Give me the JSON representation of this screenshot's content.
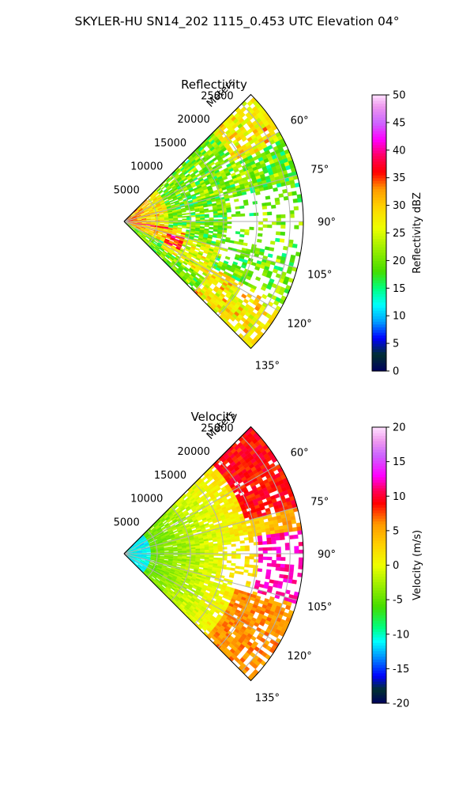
{
  "figure": {
    "suptitle": "SKYLER-HU  SN14_202  1115_0.453 UTC Elevation 04°"
  },
  "chart_data": [
    {
      "type": "heatmap",
      "projection": "polar-sector",
      "title": "Reflectivity",
      "radial_label": "Meters",
      "theta_range_deg": [
        45,
        135
      ],
      "theta_zero": "north",
      "theta_direction": "clockwise",
      "r_range": [
        0,
        27000
      ],
      "r_ticks": [
        5000,
        10000,
        15000,
        20000,
        25000
      ],
      "r_tick_labels": [
        "5000",
        "10000",
        "15000",
        "20000",
        "25000"
      ],
      "theta_ticks_deg": [
        60,
        75,
        90,
        105,
        120,
        135
      ],
      "theta_tick_labels": [
        "60°",
        "75°",
        "90°",
        "105°",
        "120°",
        "135°"
      ],
      "grid": true,
      "colorbar": {
        "label": "Reflectivity dBZ",
        "min": 0,
        "max": 50,
        "ticks": [
          0,
          5,
          10,
          15,
          20,
          25,
          30,
          35,
          40,
          45,
          50
        ],
        "tick_labels": [
          "0",
          "5",
          "10",
          "15",
          "20",
          "25",
          "30",
          "35",
          "40",
          "45",
          "50"
        ],
        "stops": [
          [
            0,
            "#000060"
          ],
          [
            3,
            "#003030"
          ],
          [
            6,
            "#0000ff"
          ],
          [
            9,
            "#00a0ff"
          ],
          [
            12,
            "#00ffff"
          ],
          [
            15,
            "#00ff80"
          ],
          [
            18,
            "#44dd00"
          ],
          [
            22,
            "#99ee00"
          ],
          [
            26,
            "#eeff00"
          ],
          [
            30,
            "#ffd000"
          ],
          [
            33,
            "#ff9900"
          ],
          [
            36,
            "#ff0000"
          ],
          [
            39,
            "#ff0060"
          ],
          [
            42,
            "#ff00ff"
          ],
          [
            45,
            "#cc66ff"
          ],
          [
            48,
            "#ee99ee"
          ],
          [
            50,
            "#ffe0ff"
          ]
        ]
      }
    },
    {
      "type": "heatmap",
      "projection": "polar-sector",
      "title": "Velocity",
      "radial_label": "Meters",
      "theta_range_deg": [
        45,
        135
      ],
      "theta_zero": "north",
      "theta_direction": "clockwise",
      "r_range": [
        0,
        27000
      ],
      "r_ticks": [
        5000,
        10000,
        15000,
        20000,
        25000
      ],
      "r_tick_labels": [
        "5000",
        "10000",
        "15000",
        "20000",
        "25000"
      ],
      "theta_ticks_deg": [
        60,
        75,
        90,
        105,
        120,
        135
      ],
      "theta_tick_labels": [
        "60°",
        "75°",
        "90°",
        "105°",
        "120°",
        "135°"
      ],
      "grid": true,
      "colorbar": {
        "label": "Velocity (m/s)",
        "min": -20,
        "max": 20,
        "ticks": [
          -20,
          -15,
          -10,
          -5,
          0,
          5,
          10,
          15,
          20
        ],
        "tick_labels": [
          "-20",
          "-15",
          "-10",
          "-5",
          "0",
          "5",
          "10",
          "15",
          "20"
        ],
        "stops": [
          [
            -20,
            "#000060"
          ],
          [
            -18,
            "#003030"
          ],
          [
            -16,
            "#0000ff"
          ],
          [
            -13,
            "#00a0ff"
          ],
          [
            -11,
            "#00ffff"
          ],
          [
            -9,
            "#00ff80"
          ],
          [
            -6,
            "#44dd00"
          ],
          [
            -3,
            "#99ee00"
          ],
          [
            0,
            "#eeff00"
          ],
          [
            3,
            "#ffd000"
          ],
          [
            6,
            "#ff9900"
          ],
          [
            9,
            "#ff0000"
          ],
          [
            11,
            "#ff0060"
          ],
          [
            13,
            "#ff00ff"
          ],
          [
            16,
            "#cc66ff"
          ],
          [
            18,
            "#ee99ee"
          ],
          [
            20,
            "#ffe0ff"
          ]
        ]
      }
    }
  ]
}
